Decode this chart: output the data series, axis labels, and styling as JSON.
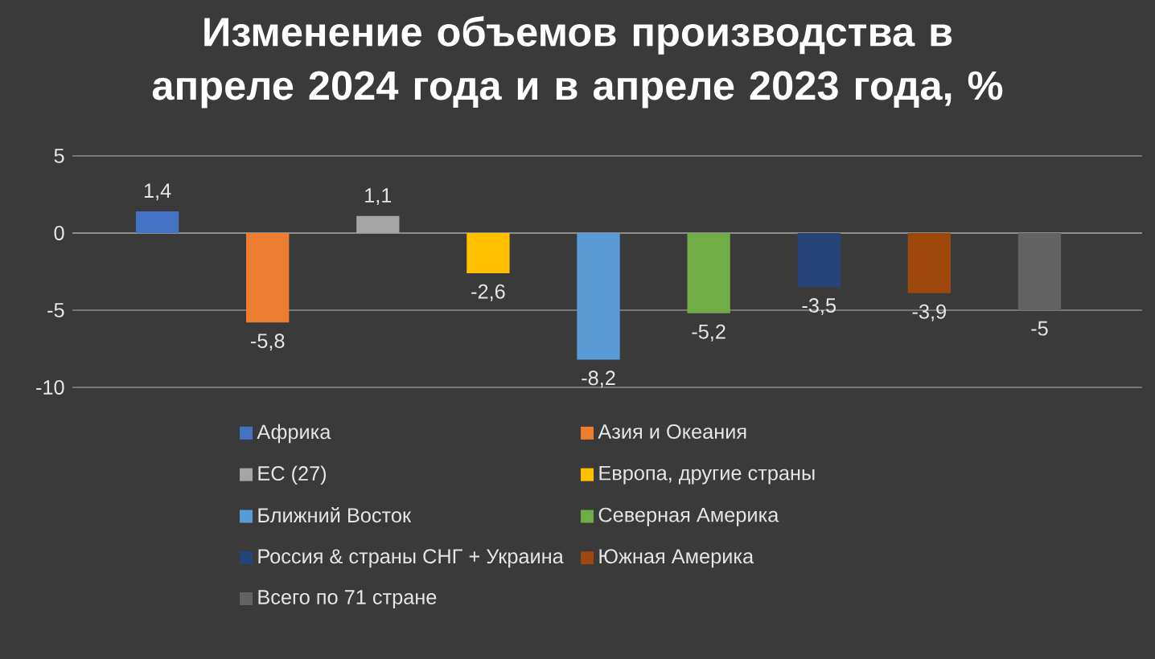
{
  "chart_data": {
    "type": "bar",
    "title": "Изменение объемов производства в апреле 2024 года и в апреле 2023 года, %",
    "categories": [
      null,
      null,
      null,
      null,
      null,
      null,
      null,
      null,
      null
    ],
    "series": [
      {
        "name": "Африка",
        "color": "#4472c4",
        "values": [
          1.4,
          null,
          null,
          null,
          null,
          null,
          null,
          null,
          null
        ],
        "value_labels": [
          "1,4",
          null,
          null,
          null,
          null,
          null,
          null,
          null,
          null
        ]
      },
      {
        "name": "Азия и Океания",
        "color": "#ed7d31",
        "values": [
          null,
          -5.8,
          null,
          null,
          null,
          null,
          null,
          null,
          null
        ],
        "value_labels": [
          null,
          "-5,8",
          null,
          null,
          null,
          null,
          null,
          null,
          null
        ]
      },
      {
        "name": "ЕС (27)",
        "color": "#a5a5a5",
        "values": [
          null,
          null,
          1.1,
          null,
          null,
          null,
          null,
          null,
          null
        ],
        "value_labels": [
          null,
          null,
          "1,1",
          null,
          null,
          null,
          null,
          null,
          null
        ]
      },
      {
        "name": "Европа, другие страны",
        "color": "#ffc000",
        "values": [
          null,
          null,
          null,
          -2.6,
          null,
          null,
          null,
          null,
          null
        ],
        "value_labels": [
          null,
          null,
          null,
          "-2,6",
          null,
          null,
          null,
          null,
          null
        ]
      },
      {
        "name": "Ближний Восток",
        "color": "#5b9bd5",
        "values": [
          null,
          null,
          null,
          null,
          -8.2,
          null,
          null,
          null,
          null
        ],
        "value_labels": [
          null,
          null,
          null,
          null,
          "-8,2",
          null,
          null,
          null,
          null
        ]
      },
      {
        "name": "Северная Америка",
        "color": "#70ad47",
        "values": [
          null,
          null,
          null,
          null,
          null,
          -5.2,
          null,
          null,
          null
        ],
        "value_labels": [
          null,
          null,
          null,
          null,
          null,
          "-5,2",
          null,
          null,
          null
        ]
      },
      {
        "name": "Россия & страны СНГ + Украина",
        "color": "#264478",
        "values": [
          null,
          null,
          null,
          null,
          null,
          null,
          -3.5,
          null,
          null
        ],
        "value_labels": [
          null,
          null,
          null,
          null,
          null,
          null,
          "-3,5",
          null,
          null
        ]
      },
      {
        "name": "Южная Америка",
        "color": "#9e480e",
        "values": [
          null,
          null,
          null,
          null,
          null,
          null,
          null,
          -3.9,
          null
        ],
        "value_labels": [
          null,
          null,
          null,
          null,
          null,
          null,
          null,
          "-3,9",
          null
        ]
      },
      {
        "name": "Всего по 71 стране",
        "color": "#636363",
        "values": [
          null,
          null,
          null,
          null,
          null,
          null,
          null,
          null,
          -5
        ],
        "value_labels": [
          null,
          null,
          null,
          null,
          null,
          null,
          null,
          null,
          "-5"
        ]
      }
    ],
    "ylim": [
      -10,
      5
    ],
    "yticks": [
      -10,
      -5,
      0,
      5
    ],
    "grid": "y",
    "legend": "bottom"
  }
}
